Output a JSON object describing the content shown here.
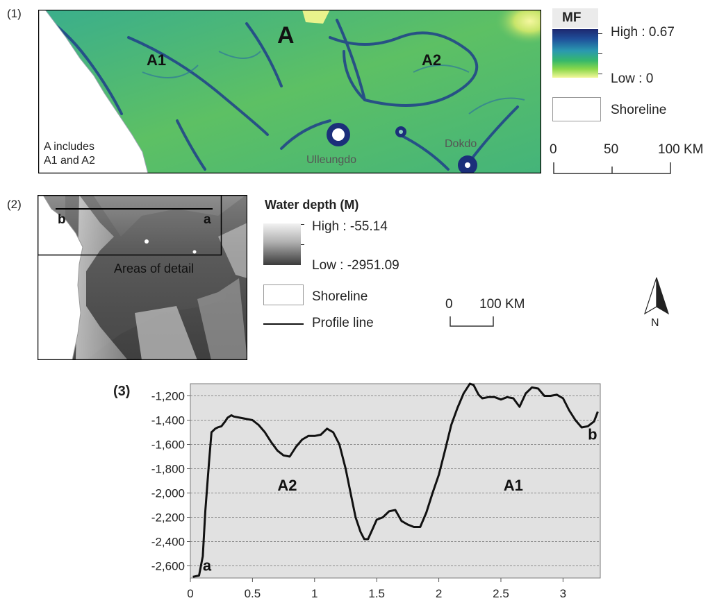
{
  "panel1": {
    "label": "(1)",
    "regions": {
      "a": "A",
      "a1": "A1",
      "a2": "A2"
    },
    "places": {
      "ulleungdo": "Ulleungdo",
      "dokdo": "Dokdo"
    },
    "note_line1": "A includes",
    "note_line2": "A1 and A2",
    "legend": {
      "title": "MF",
      "high": "High : 0.67",
      "low": "Low : 0",
      "shoreline": "Shoreline",
      "scale_ticks": [
        "0",
        "50",
        "100 KM"
      ]
    }
  },
  "panel2": {
    "label": "(2)",
    "profile_end_b": "b",
    "profile_end_a": "a",
    "detail_label": "Areas of detail",
    "legend": {
      "title": "Water depth (M)",
      "high": "High : -55.14",
      "low": "Low : -2951.09",
      "shoreline": "Shoreline",
      "profile_line": "Profile line",
      "scale_ticks": [
        "0",
        "100 KM"
      ],
      "north": "N"
    }
  },
  "panel3": {
    "label": "(3)",
    "chart_data": {
      "type": "line",
      "title": "",
      "xlabel": "",
      "ylabel": "",
      "xlim": [
        0,
        3.3
      ],
      "ylim": [
        -2700,
        -1100
      ],
      "x_ticks": [
        0,
        0.5,
        1,
        1.5,
        2,
        2.5,
        3
      ],
      "x_tick_labels": [
        "0",
        "0.5",
        "1",
        "1.5",
        "2",
        "2.5",
        "3"
      ],
      "y_ticks": [
        -2600,
        -2400,
        -2200,
        -2000,
        -1800,
        -1600,
        -1400,
        -1200
      ],
      "y_tick_labels": [
        "-2,600",
        "-2,400",
        "-2,200",
        "-2,000",
        "-1,800",
        "-1,600",
        "-1,400",
        "-1,200"
      ],
      "grid": true,
      "annotations": [
        {
          "text": "a",
          "x": 0.1,
          "y": -2640
        },
        {
          "text": "b",
          "x": 3.2,
          "y": -1560
        },
        {
          "text": "A2",
          "x": 0.78,
          "y": -1980
        },
        {
          "text": "A1",
          "x": 2.6,
          "y": -1980
        }
      ],
      "series": [
        {
          "x": [
            0.02,
            0.07,
            0.1,
            0.12,
            0.15,
            0.17,
            0.2,
            0.22,
            0.25,
            0.28,
            0.3,
            0.33,
            0.35,
            0.4,
            0.5,
            0.55,
            0.6,
            0.65,
            0.7,
            0.75,
            0.8,
            0.85,
            0.9,
            0.95,
            1.0,
            1.05,
            1.1,
            1.15,
            1.2,
            1.25,
            1.3,
            1.33,
            1.37,
            1.4,
            1.43,
            1.47,
            1.5,
            1.55,
            1.6,
            1.65,
            1.7,
            1.75,
            1.8,
            1.85,
            1.9,
            1.95,
            2.0,
            2.05,
            2.1,
            2.15,
            2.2,
            2.25,
            2.28,
            2.32,
            2.35,
            2.4,
            2.45,
            2.5,
            2.55,
            2.6,
            2.65,
            2.7,
            2.75,
            2.8,
            2.85,
            2.9,
            2.95,
            3.0,
            3.05,
            3.1,
            3.15,
            3.2,
            3.25,
            3.28
          ],
          "y": [
            -2690,
            -2680,
            -2520,
            -2150,
            -1750,
            -1500,
            -1470,
            -1460,
            -1450,
            -1410,
            -1380,
            -1360,
            -1370,
            -1380,
            -1400,
            -1440,
            -1500,
            -1580,
            -1650,
            -1690,
            -1700,
            -1620,
            -1560,
            -1530,
            -1530,
            -1520,
            -1470,
            -1500,
            -1600,
            -1800,
            -2050,
            -2200,
            -2320,
            -2380,
            -2380,
            -2290,
            -2220,
            -2200,
            -2150,
            -2140,
            -2230,
            -2260,
            -2280,
            -2280,
            -2160,
            -2000,
            -1850,
            -1650,
            -1440,
            -1300,
            -1180,
            -1100,
            -1110,
            -1190,
            -1220,
            -1210,
            -1210,
            -1230,
            -1210,
            -1220,
            -1290,
            -1180,
            -1130,
            -1140,
            -1200,
            -1200,
            -1190,
            -1220,
            -1320,
            -1400,
            -1460,
            -1450,
            -1410,
            -1330
          ]
        }
      ]
    }
  }
}
